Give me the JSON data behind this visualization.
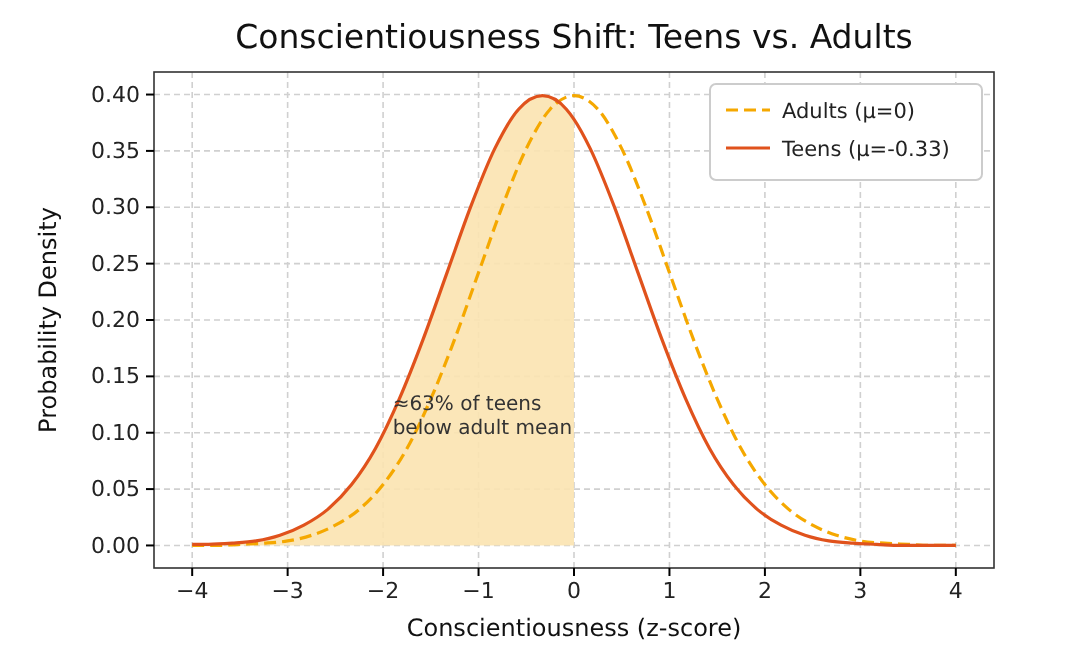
{
  "chart_data": {
    "type": "line",
    "title": "Conscientiousness Shift: Teens vs. Adults",
    "xlabel": "Conscientiousness (z-score)",
    "ylabel": "Probability Density",
    "xlim": [
      -4.4,
      4.4
    ],
    "xticks": [
      {
        "value": -4,
        "label": "−4"
      },
      {
        "value": -3,
        "label": "−3"
      },
      {
        "value": -2,
        "label": "−2"
      },
      {
        "value": -1,
        "label": "−1"
      },
      0,
      1,
      2,
      3,
      4
    ],
    "ylim": [
      -0.02,
      0.42
    ],
    "yticks": [
      {
        "value": 0,
        "label": "0.00"
      },
      {
        "value": 0.05,
        "label": "0.05"
      },
      {
        "value": 0.1,
        "label": "0.10"
      },
      {
        "value": 0.15,
        "label": "0.15"
      },
      {
        "value": 0.2,
        "label": "0.20"
      },
      {
        "value": 0.25,
        "label": "0.25"
      },
      {
        "value": 0.3,
        "label": "0.30"
      },
      {
        "value": 0.35,
        "label": "0.35"
      },
      {
        "value": 0.4,
        "label": "0.40"
      }
    ],
    "grid": true,
    "legend": "top right",
    "annotations": [
      {
        "text": "≈63% of teens\nbelow adult mean",
        "x": -1.9,
        "y": 0.12
      }
    ],
    "series": [
      {
        "type": "area",
        "color": "#fbe3b0",
        "x": [
          -4,
          -3.83,
          -3.58,
          -3.33,
          -3.08,
          -2.83,
          -2.58,
          -2.33,
          -2.08,
          -1.83,
          -1.58,
          -1.33,
          -1.08,
          -0.83,
          -0.58,
          -0.33,
          -0.08,
          0
        ],
        "values": [
          0.001,
          0.001,
          0.002,
          0.004,
          0.009,
          0.018,
          0.032,
          0.054,
          0.086,
          0.13,
          0.183,
          0.242,
          0.301,
          0.352,
          0.387,
          0.399,
          0.387,
          0.378
        ]
      },
      {
        "name": "Adults (μ=0)",
        "color": "#f5a800",
        "line_style": "dashed",
        "x": [
          -4,
          -3.75,
          -3.5,
          -3.25,
          -3,
          -2.75,
          -2.5,
          -2.25,
          -2,
          -1.75,
          -1.5,
          -1.25,
          -1,
          -0.75,
          -0.5,
          -0.25,
          0,
          0.25,
          0.5,
          0.75,
          1,
          1.25,
          1.5,
          1.75,
          2,
          2.25,
          2.5,
          2.75,
          3,
          3.25,
          3.5,
          3.75,
          4
        ],
        "values": [
          0,
          0,
          0.001,
          0.002,
          0.004,
          0.009,
          0.018,
          0.032,
          0.054,
          0.086,
          0.13,
          0.183,
          0.242,
          0.301,
          0.352,
          0.387,
          0.399,
          0.387,
          0.352,
          0.301,
          0.242,
          0.183,
          0.13,
          0.086,
          0.054,
          0.032,
          0.018,
          0.009,
          0.004,
          0.002,
          0.001,
          0,
          0
        ]
      },
      {
        "name": "Teens (μ=-0.33)",
        "color": "#e0521c",
        "line_style": "solid",
        "x": [
          -4,
          -3.83,
          -3.58,
          -3.33,
          -3.08,
          -2.83,
          -2.58,
          -2.33,
          -2.08,
          -1.83,
          -1.58,
          -1.33,
          -1.08,
          -0.83,
          -0.58,
          -0.33,
          -0.08,
          0,
          0.17,
          0.42,
          0.67,
          0.92,
          1.17,
          1.42,
          1.67,
          1.92,
          2.17,
          2.42,
          2.67,
          2.92,
          3.17,
          3.42,
          3.67,
          4
        ],
        "values": [
          0.001,
          0.001,
          0.002,
          0.004,
          0.009,
          0.018,
          0.032,
          0.054,
          0.086,
          0.13,
          0.183,
          0.242,
          0.301,
          0.352,
          0.387,
          0.399,
          0.387,
          0.378,
          0.352,
          0.301,
          0.242,
          0.183,
          0.13,
          0.086,
          0.054,
          0.032,
          0.018,
          0.009,
          0.004,
          0.002,
          0.001,
          0,
          0,
          0
        ]
      }
    ]
  }
}
